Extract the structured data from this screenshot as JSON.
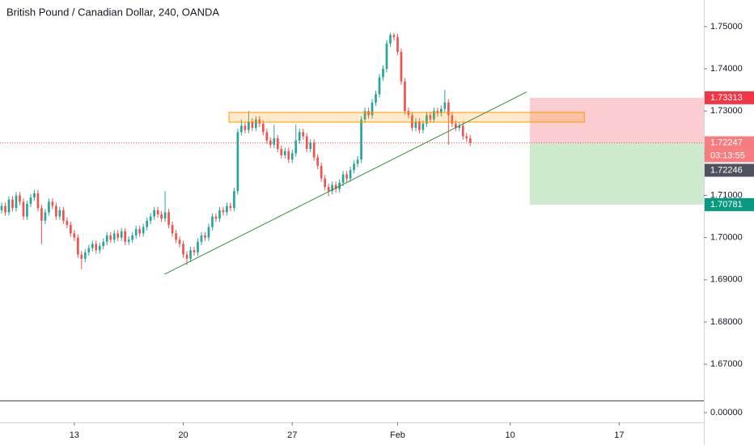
{
  "chart_data": {
    "type": "candlestick",
    "title": "British Pound / Canadian Dollar, 240, OANDA",
    "up_color": "#26a69a",
    "down_color": "#ef5350",
    "xlim": [
      -0.45,
      193.3
    ],
    "xticks": [
      {
        "value": 20,
        "label": "13"
      },
      {
        "value": 50,
        "label": "20"
      },
      {
        "value": 80,
        "label": "27"
      },
      {
        "value": 109,
        "label": "Feb"
      },
      {
        "value": 140,
        "label": "10"
      },
      {
        "value": 170,
        "label": "17"
      }
    ],
    "ylim": [
      1.6614,
      1.7563
    ],
    "yticks": [
      {
        "value": 1.75,
        "label": "1.75000"
      },
      {
        "value": 1.74,
        "label": "1.74000"
      },
      {
        "value": 1.73,
        "label": "1.73000"
      },
      {
        "value": 1.72,
        "label": "1.72000"
      },
      {
        "value": 1.71,
        "label": "1.71000"
      },
      {
        "value": 1.7,
        "label": "1.70000"
      },
      {
        "value": 1.69,
        "label": "1.69000"
      },
      {
        "value": 1.68,
        "label": "1.68000"
      },
      {
        "value": 1.67,
        "label": "1.67000"
      }
    ],
    "grid": false,
    "open": [
      1.7065,
      1.7075,
      1.706,
      1.709,
      1.707,
      1.71,
      1.7085,
      1.705,
      1.708,
      1.7095,
      1.7105,
      1.707,
      1.704,
      1.706,
      1.7085,
      1.7075,
      1.705,
      1.7065,
      1.704,
      1.703,
      1.701,
      1.7,
      1.696,
      1.695,
      1.6965,
      1.6975,
      1.6985,
      1.697,
      1.698,
      1.699,
      1.7005,
      1.6995,
      1.701,
      1.7,
      1.7015,
      1.699,
      1.6995,
      1.7005,
      1.702,
      1.701,
      1.7025,
      1.704,
      1.705,
      1.7065,
      1.7055,
      1.7045,
      1.706,
      1.703,
      1.701,
      1.6995,
      1.6985,
      1.696,
      1.695,
      1.697,
      1.6965,
      1.699,
      1.7005,
      1.7,
      1.7025,
      1.705,
      1.7045,
      1.7065,
      1.706,
      1.7075,
      1.707,
      1.711,
      1.725,
      1.7265,
      1.7255,
      1.7275,
      1.726,
      1.728,
      1.727,
      1.725,
      1.723,
      1.722,
      1.7235,
      1.721,
      1.7195,
      1.7205,
      1.7185,
      1.72,
      1.723,
      1.725,
      1.724,
      1.721,
      1.7225,
      1.719,
      1.717,
      1.714,
      1.712,
      1.711,
      1.7125,
      1.7115,
      1.713,
      1.715,
      1.714,
      1.716,
      1.7175,
      1.7185,
      1.728,
      1.73,
      1.729,
      1.732,
      1.734,
      1.738,
      1.74,
      1.746,
      1.748,
      1.7475,
      1.744,
      1.737,
      1.73,
      1.729,
      1.726,
      1.7275,
      1.7255,
      1.727,
      1.729,
      1.728,
      1.73,
      1.7295,
      1.7305,
      1.732,
      1.729,
      1.727,
      1.726,
      1.7265,
      1.724,
      1.7235
    ],
    "high": [
      1.7083,
      1.7083,
      1.7098,
      1.7098,
      1.7108,
      1.7108,
      1.7093,
      1.7088,
      1.7103,
      1.7113,
      1.7113,
      1.7078,
      1.7068,
      1.7093,
      1.7093,
      1.7083,
      1.7073,
      1.7073,
      1.7048,
      1.7038,
      1.7018,
      1.7008,
      1.6968,
      1.6973,
      1.6983,
      1.6993,
      1.6993,
      1.6988,
      1.6998,
      1.7013,
      1.7013,
      1.7018,
      1.7018,
      1.7023,
      1.7023,
      1.7003,
      1.7013,
      1.7028,
      1.7028,
      1.7033,
      1.7048,
      1.7058,
      1.7073,
      1.7073,
      1.7063,
      1.711,
      1.7068,
      1.7038,
      1.7018,
      1.7003,
      1.6993,
      1.6968,
      1.6978,
      1.6978,
      1.6998,
      1.7013,
      1.7013,
      1.7033,
      1.7058,
      1.7058,
      1.7073,
      1.7073,
      1.7083,
      1.7083,
      1.7118,
      1.7258,
      1.728,
      1.7273,
      1.73,
      1.7283,
      1.7288,
      1.7288,
      1.7278,
      1.7258,
      1.7238,
      1.7268,
      1.7243,
      1.7218,
      1.7213,
      1.7213,
      1.7208,
      1.7268,
      1.7258,
      1.7258,
      1.7248,
      1.7233,
      1.7233,
      1.7198,
      1.7178,
      1.7148,
      1.7128,
      1.7133,
      1.7133,
      1.7138,
      1.7158,
      1.7158,
      1.7168,
      1.7183,
      1.7193,
      1.7288,
      1.7308,
      1.7308,
      1.7328,
      1.7348,
      1.7388,
      1.7408,
      1.7468,
      1.7485,
      1.7485,
      1.7483,
      1.7448,
      1.7378,
      1.7308,
      1.7298,
      1.7283,
      1.7283,
      1.7278,
      1.7298,
      1.7298,
      1.7308,
      1.7308,
      1.7313,
      1.735,
      1.7328,
      1.7298,
      1.7278,
      1.7273,
      1.7273,
      1.7248,
      1.7243
    ],
    "low": [
      1.7057,
      1.7052,
      1.7052,
      1.7062,
      1.7062,
      1.7077,
      1.7042,
      1.7042,
      1.7072,
      1.7087,
      1.7062,
      1.6985,
      1.7032,
      1.7052,
      1.7067,
      1.7042,
      1.7042,
      1.7032,
      1.7022,
      1.7002,
      1.6992,
      1.6952,
      1.6925,
      1.6942,
      1.6957,
      1.6967,
      1.6962,
      1.6962,
      1.6972,
      1.6982,
      1.6987,
      1.6987,
      1.6992,
      1.6992,
      1.6982,
      1.6982,
      1.6987,
      1.6997,
      1.7002,
      1.7002,
      1.7017,
      1.7032,
      1.7042,
      1.7047,
      1.7037,
      1.7037,
      1.7022,
      1.7002,
      1.6987,
      1.6977,
      1.6952,
      1.6935,
      1.6942,
      1.6957,
      1.6957,
      1.6982,
      1.6992,
      1.6992,
      1.7017,
      1.7037,
      1.7037,
      1.7052,
      1.7052,
      1.7062,
      1.7062,
      1.7102,
      1.7242,
      1.7247,
      1.7247,
      1.7252,
      1.7252,
      1.7262,
      1.7242,
      1.7222,
      1.7212,
      1.7212,
      1.7202,
      1.7187,
      1.7187,
      1.7177,
      1.7177,
      1.7192,
      1.7222,
      1.7232,
      1.7202,
      1.7202,
      1.7182,
      1.7162,
      1.7132,
      1.7112,
      1.7098,
      1.7102,
      1.7107,
      1.7107,
      1.7122,
      1.7132,
      1.7132,
      1.7152,
      1.7167,
      1.7177,
      1.7272,
      1.7282,
      1.7282,
      1.7312,
      1.7332,
      1.7372,
      1.7392,
      1.7452,
      1.7467,
      1.7432,
      1.7362,
      1.7292,
      1.7282,
      1.7252,
      1.7252,
      1.7247,
      1.7247,
      1.7262,
      1.7272,
      1.7272,
      1.7287,
      1.7287,
      1.7297,
      1.722,
      1.7262,
      1.7252,
      1.7252,
      1.7232,
      1.7227,
      1.7217
    ],
    "close": [
      1.7075,
      1.706,
      1.709,
      1.707,
      1.71,
      1.7085,
      1.705,
      1.708,
      1.7095,
      1.7105,
      1.707,
      1.704,
      1.706,
      1.7085,
      1.7075,
      1.705,
      1.7065,
      1.704,
      1.703,
      1.701,
      1.7,
      1.696,
      1.695,
      1.6965,
      1.6975,
      1.6985,
      1.697,
      1.698,
      1.699,
      1.7005,
      1.6995,
      1.701,
      1.7,
      1.7015,
      1.699,
      1.6995,
      1.7005,
      1.702,
      1.701,
      1.7025,
      1.704,
      1.705,
      1.7065,
      1.7055,
      1.7045,
      1.706,
      1.703,
      1.701,
      1.6995,
      1.6985,
      1.696,
      1.695,
      1.697,
      1.6965,
      1.699,
      1.7005,
      1.7,
      1.7025,
      1.705,
      1.7045,
      1.7065,
      1.706,
      1.7075,
      1.707,
      1.711,
      1.725,
      1.7265,
      1.7255,
      1.7275,
      1.726,
      1.728,
      1.727,
      1.725,
      1.723,
      1.722,
      1.7235,
      1.721,
      1.7195,
      1.7205,
      1.7185,
      1.72,
      1.723,
      1.725,
      1.724,
      1.721,
      1.7225,
      1.719,
      1.717,
      1.714,
      1.712,
      1.711,
      1.7125,
      1.7115,
      1.713,
      1.715,
      1.714,
      1.716,
      1.7175,
      1.7185,
      1.728,
      1.73,
      1.729,
      1.732,
      1.734,
      1.738,
      1.74,
      1.746,
      1.748,
      1.7475,
      1.744,
      1.737,
      1.73,
      1.729,
      1.726,
      1.7275,
      1.7255,
      1.727,
      1.729,
      1.728,
      1.73,
      1.7295,
      1.7305,
      1.732,
      1.729,
      1.727,
      1.726,
      1.7265,
      1.724,
      1.7235,
      1.7225
    ],
    "trendline": {
      "x": [
        44.8,
        144.5
      ],
      "y": [
        1.6913,
        1.7345
      ],
      "color": "#388e3c"
    },
    "zone": {
      "x": [
        62.6,
        160.4
      ],
      "y": [
        1.72736,
        1.72967
      ],
      "color": "#ff9800"
    },
    "position": {
      "x": [
        145.4,
        193.3
      ],
      "stop": {
        "value": 1.73313,
        "label": "1.73313"
      },
      "entry": {
        "value": 1.72247,
        "label": "1.72247"
      },
      "target": {
        "value": 1.70781,
        "label": "1.70781"
      }
    },
    "countdown": "03:13:55",
    "last_price": {
      "value": 1.72246,
      "label": "1.72246"
    },
    "pane2_yticks": [
      {
        "value": 0,
        "label": "0.00000"
      }
    ]
  }
}
